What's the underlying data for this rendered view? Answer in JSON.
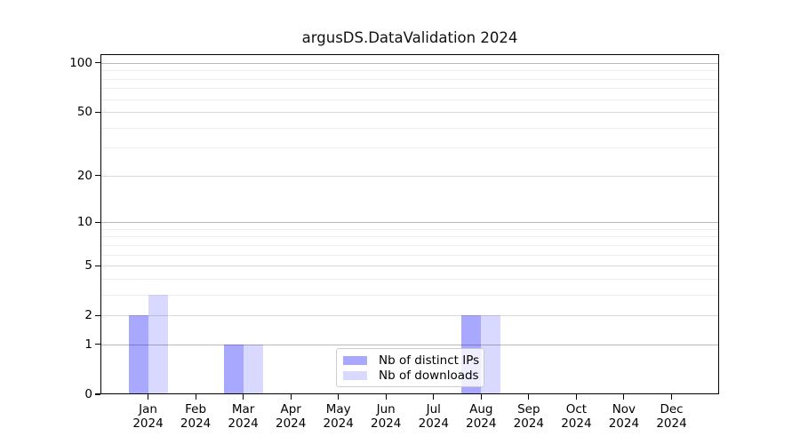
{
  "chart_data": {
    "type": "bar",
    "title": "argusDS.DataValidation 2024",
    "categories": [
      {
        "month": "Jan",
        "year": "2024"
      },
      {
        "month": "Feb",
        "year": "2024"
      },
      {
        "month": "Mar",
        "year": "2024"
      },
      {
        "month": "Apr",
        "year": "2024"
      },
      {
        "month": "May",
        "year": "2024"
      },
      {
        "month": "Jun",
        "year": "2024"
      },
      {
        "month": "Jul",
        "year": "2024"
      },
      {
        "month": "Aug",
        "year": "2024"
      },
      {
        "month": "Sep",
        "year": "2024"
      },
      {
        "month": "Oct",
        "year": "2024"
      },
      {
        "month": "Nov",
        "year": "2024"
      },
      {
        "month": "Dec",
        "year": "2024"
      }
    ],
    "series": [
      {
        "name": "Nb of distinct IPs",
        "base_color": "#0000ff",
        "alpha": 0.34,
        "values": [
          2,
          0,
          1,
          0,
          0,
          0,
          0,
          2,
          0,
          0,
          0,
          0
        ]
      },
      {
        "name": "Nb of downloads",
        "base_color": "#0000ff",
        "alpha": 0.15,
        "values": [
          3,
          0,
          1,
          0,
          0,
          0,
          0,
          2,
          0,
          0,
          0,
          0
        ]
      }
    ],
    "yscale": "symlog log10(1+x)",
    "ylim": [
      0,
      113
    ],
    "yticks": [
      0,
      1,
      2,
      5,
      10,
      20,
      50,
      100
    ],
    "grid": true,
    "major_gridlines": [
      1,
      10,
      100
    ],
    "labeled_minor_gridlines": [
      2,
      5,
      20,
      50
    ],
    "minor_gridlines": [
      3,
      4,
      6,
      7,
      8,
      9,
      30,
      40,
      60,
      70,
      80,
      90
    ],
    "grid_major_color": "#b9b9b9",
    "grid_labeled_color": "#dadada",
    "grid_minor_color": "#ededed",
    "axis_color": "#000000",
    "legend_position": "lower center"
  }
}
